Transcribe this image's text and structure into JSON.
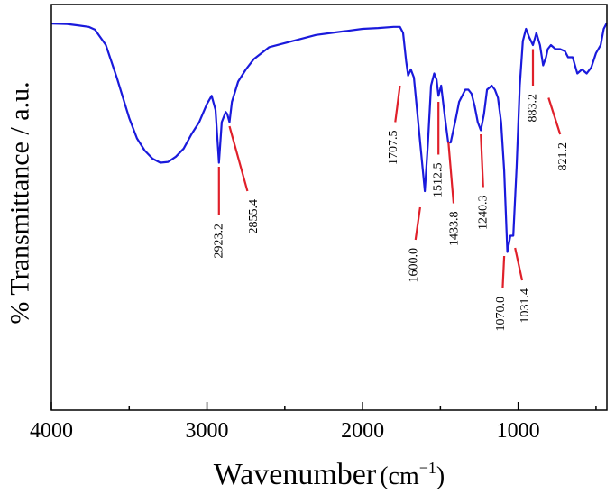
{
  "chart_data": {
    "type": "line",
    "title": "",
    "xlabel_main": "Wavenumber",
    "xlabel_unit": "(cm",
    "xlabel_sup": "−1",
    "xlabel_close": ")",
    "ylabel": "% Transmittance / a.u.",
    "xlim": [
      4000,
      430
    ],
    "ylim": [
      0,
      1
    ],
    "x_ticks": [
      4000,
      3000,
      2000,
      1000
    ],
    "x_tick_labels": [
      "4000",
      "3000",
      "2000",
      "1000"
    ],
    "line_color": "#1a1adc",
    "annotation_color": "#e0202a",
    "series": [
      {
        "name": "spectrum",
        "x": [
          4000,
          3900,
          3820,
          3760,
          3720,
          3650,
          3580,
          3500,
          3450,
          3400,
          3350,
          3300,
          3250,
          3200,
          3150,
          3100,
          3050,
          3000,
          2970,
          2945,
          2923.2,
          2905,
          2880,
          2870,
          2855.4,
          2840,
          2800,
          2750,
          2700,
          2650,
          2600,
          2500,
          2400,
          2300,
          2200,
          2100,
          2000,
          1900,
          1800,
          1760,
          1740,
          1720,
          1707.5,
          1690,
          1670,
          1640,
          1600,
          1580,
          1560,
          1540,
          1525,
          1512.5,
          1495,
          1470,
          1450,
          1433.8,
          1400,
          1380,
          1340,
          1320,
          1300,
          1280,
          1260,
          1240.3,
          1220,
          1200,
          1170,
          1150,
          1130,
          1110,
          1090,
          1070,
          1050,
          1031.4,
          1010,
          990,
          970,
          950,
          930,
          905,
          890,
          883.2,
          860,
          840,
          821.2,
          810,
          790,
          760,
          730,
          700,
          680,
          650,
          620,
          590,
          560,
          530,
          500,
          470,
          450,
          430
        ],
        "y": [
          0.953,
          0.952,
          0.948,
          0.945,
          0.938,
          0.9,
          0.82,
          0.72,
          0.67,
          0.64,
          0.62,
          0.61,
          0.612,
          0.625,
          0.645,
          0.68,
          0.71,
          0.755,
          0.775,
          0.74,
          0.61,
          0.71,
          0.735,
          0.73,
          0.71,
          0.76,
          0.81,
          0.84,
          0.865,
          0.88,
          0.895,
          0.905,
          0.915,
          0.925,
          0.93,
          0.935,
          0.94,
          0.942,
          0.945,
          0.945,
          0.93,
          0.86,
          0.825,
          0.84,
          0.82,
          0.7,
          0.54,
          0.66,
          0.8,
          0.83,
          0.815,
          0.775,
          0.8,
          0.72,
          0.66,
          0.66,
          0.72,
          0.76,
          0.79,
          0.79,
          0.78,
          0.75,
          0.71,
          0.69,
          0.73,
          0.79,
          0.8,
          0.79,
          0.77,
          0.71,
          0.59,
          0.39,
          0.43,
          0.43,
          0.6,
          0.8,
          0.91,
          0.94,
          0.92,
          0.9,
          0.92,
          0.93,
          0.9,
          0.85,
          0.87,
          0.89,
          0.9,
          0.89,
          0.89,
          0.885,
          0.87,
          0.87,
          0.83,
          0.84,
          0.83,
          0.845,
          0.88,
          0.9,
          0.94,
          0.955
        ]
      }
    ],
    "annotations": [
      {
        "text": "2923.2",
        "x_start": 2923.2,
        "y_start": 0.6,
        "x_end": 2923.2,
        "y_end": 0.48,
        "label_x": 2923.2,
        "label_y": 0.46
      },
      {
        "text": "2855.4",
        "x_start": 2855.4,
        "y_start": 0.7,
        "x_end": 2740,
        "y_end": 0.54,
        "label_x": 2700,
        "label_y": 0.52
      },
      {
        "text": "1707.5",
        "x_start": 1760,
        "y_start": 0.8,
        "x_end": 1790,
        "y_end": 0.71,
        "label_x": 1800,
        "label_y": 0.69
      },
      {
        "text": "1600.0",
        "x_start": 1630,
        "y_start": 0.5,
        "x_end": 1660,
        "y_end": 0.42,
        "label_x": 1670,
        "label_y": 0.4
      },
      {
        "text": "1512.5",
        "x_start": 1512.5,
        "y_start": 0.76,
        "x_end": 1512.5,
        "y_end": 0.63,
        "label_x": 1512.5,
        "label_y": 0.61
      },
      {
        "text": "1433.8",
        "x_start": 1448,
        "y_start": 0.66,
        "x_end": 1415,
        "y_end": 0.51,
        "label_x": 1410,
        "label_y": 0.49
      },
      {
        "text": "1240.3",
        "x_start": 1240.3,
        "y_start": 0.68,
        "x_end": 1225,
        "y_end": 0.55,
        "label_x": 1225,
        "label_y": 0.53
      },
      {
        "text": "1070.0",
        "x_start": 1090,
        "y_start": 0.38,
        "x_end": 1100,
        "y_end": 0.3,
        "label_x": 1110,
        "label_y": 0.28
      },
      {
        "text": "1031.4",
        "x_start": 1020,
        "y_start": 0.4,
        "x_end": 975,
        "y_end": 0.32,
        "label_x": 955,
        "label_y": 0.3
      },
      {
        "text": "883.2",
        "x_start": 905,
        "y_start": 0.89,
        "x_end": 905,
        "y_end": 0.8,
        "label_x": 905,
        "label_y": 0.78
      },
      {
        "text": "821.2",
        "x_start": 805,
        "y_start": 0.77,
        "x_end": 730,
        "y_end": 0.68,
        "label_x": 710,
        "label_y": 0.66
      }
    ]
  }
}
